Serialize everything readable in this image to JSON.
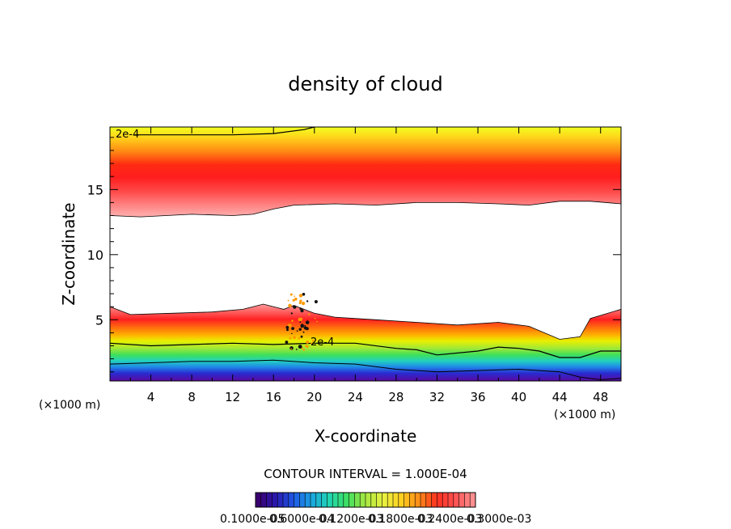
{
  "chart_data": {
    "type": "heatmap",
    "title": "density of cloud",
    "xlabel": "X-coordinate",
    "ylabel": "Z-coordinate",
    "x_unit": "(×1000 m)",
    "y_unit": "(×1000 m)",
    "xlim": [
      0,
      50
    ],
    "ylim": [
      0.3,
      19.8
    ],
    "x_ticks": [
      4,
      8,
      12,
      16,
      20,
      24,
      28,
      32,
      36,
      40,
      44,
      48
    ],
    "y_ticks": [
      5,
      10,
      15
    ],
    "contour_interval_label": "CONTOUR INTERVAL = 1.000E-04",
    "contour_labels": [
      {
        "text": "2e-4",
        "x": 2.4,
        "z": 19.2
      },
      {
        "text": "2e-4",
        "x": 21.2,
        "z": 3.3
      }
    ],
    "colorbar": {
      "colors": [
        "#3a0070",
        "#2a1ab0",
        "#1f5ae6",
        "#1aa6e0",
        "#22d6b0",
        "#3ee060",
        "#a8e840",
        "#e8f040",
        "#ffd020",
        "#ff8c18",
        "#ff3020",
        "#ff5050",
        "#ff8f8f"
      ],
      "tick_labels": [
        "0.1000e-05",
        "0.6000e-04",
        "0.1200e-03",
        "0.1800e-03",
        "0.2400e-03",
        "0.3000e-03"
      ]
    },
    "layers": {
      "upper_band": {
        "top_z": 19.8,
        "bottom_boundary": [
          [
            0,
            13.0
          ],
          [
            3,
            12.9
          ],
          [
            8,
            13.1
          ],
          [
            12,
            13.0
          ],
          [
            14,
            13.1
          ],
          [
            16,
            13.5
          ],
          [
            18,
            13.8
          ],
          [
            22,
            13.9
          ],
          [
            26,
            13.8
          ],
          [
            30,
            14.0
          ],
          [
            34,
            14.0
          ],
          [
            38,
            13.9
          ],
          [
            41,
            13.8
          ],
          [
            44,
            14.1
          ],
          [
            47,
            14.1
          ],
          [
            50,
            13.9
          ]
        ],
        "peak_z": 16.0
      },
      "lower_band": {
        "bottom_z": 0.3,
        "top_boundary": [
          [
            0,
            6.0
          ],
          [
            2,
            5.4
          ],
          [
            6,
            5.5
          ],
          [
            10,
            5.6
          ],
          [
            13,
            5.8
          ],
          [
            15,
            6.2
          ],
          [
            17,
            5.8
          ],
          [
            18,
            6.1
          ],
          [
            20,
            5.5
          ],
          [
            22,
            5.2
          ],
          [
            26,
            5.0
          ],
          [
            30,
            4.8
          ],
          [
            34,
            4.6
          ],
          [
            38,
            4.8
          ],
          [
            41,
            4.5
          ],
          [
            44,
            3.5
          ],
          [
            46,
            3.7
          ],
          [
            47,
            5.1
          ],
          [
            50,
            5.8
          ]
        ],
        "contour_2e4": [
          [
            0,
            3.2
          ],
          [
            4,
            3.0
          ],
          [
            8,
            3.1
          ],
          [
            12,
            3.2
          ],
          [
            16,
            3.1
          ],
          [
            20,
            3.2
          ],
          [
            24,
            3.2
          ],
          [
            28,
            2.8
          ],
          [
            30,
            2.7
          ],
          [
            32,
            2.3
          ],
          [
            36,
            2.6
          ],
          [
            38,
            2.9
          ],
          [
            40,
            2.8
          ],
          [
            42,
            2.6
          ],
          [
            44,
            2.1
          ],
          [
            46,
            2.1
          ],
          [
            48,
            2.6
          ],
          [
            50,
            2.6
          ]
        ],
        "contour_low": [
          [
            0,
            1.6
          ],
          [
            4,
            1.7
          ],
          [
            8,
            1.8
          ],
          [
            12,
            1.8
          ],
          [
            16,
            1.9
          ],
          [
            20,
            1.7
          ],
          [
            24,
            1.6
          ],
          [
            28,
            1.2
          ],
          [
            32,
            1.0
          ],
          [
            36,
            1.1
          ],
          [
            40,
            1.2
          ],
          [
            44,
            1.0
          ],
          [
            46,
            0.6
          ],
          [
            48,
            0.4
          ],
          [
            50,
            0.5
          ]
        ]
      }
    }
  }
}
